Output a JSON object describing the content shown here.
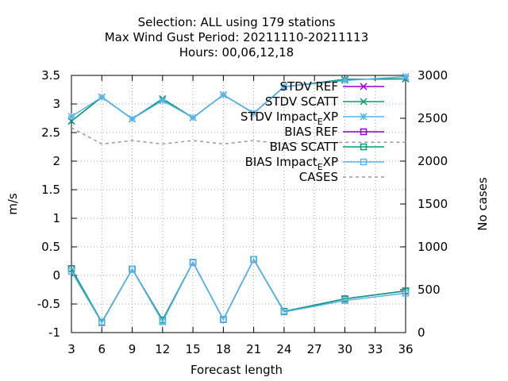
{
  "chart_data": {
    "type": "line",
    "title_lines": [
      "Selection: ALL using   179 stations",
      "Max Wind Gust   Period: 20211110-20211113",
      "Hours:  00,06,12,18"
    ],
    "xlabel": "Forecast length",
    "ylabel": "m/s",
    "y2label": "No cases",
    "x_ticks": [
      3,
      6,
      9,
      12,
      15,
      18,
      21,
      24,
      27,
      30,
      33,
      36
    ],
    "y_ticks": [
      -1,
      -0.5,
      0,
      0.5,
      1,
      1.5,
      2,
      2.5,
      3,
      3.5
    ],
    "y2_ticks": [
      0,
      500,
      1000,
      1500,
      2000,
      2500,
      3000
    ],
    "xlim": [
      3,
      36
    ],
    "ylim": [
      -1,
      3.5
    ],
    "y2lim": [
      0,
      3000
    ],
    "grid": true,
    "legend_position": "top-right",
    "x": [
      3,
      6,
      9,
      12,
      15,
      18,
      21,
      24,
      30,
      36
    ],
    "series": [
      {
        "name": "STDV REF",
        "axis": "y",
        "color": "#9400d3",
        "marker": "x",
        "dash": false,
        "values": [
          2.7,
          3.12,
          2.74,
          3.09,
          2.76,
          3.16,
          2.84,
          3.3,
          3.43,
          3.44
        ]
      },
      {
        "name": "STDV SCATT",
        "axis": "y",
        "color": "#009e73",
        "marker": "x",
        "dash": false,
        "values": [
          2.7,
          3.12,
          2.74,
          3.09,
          2.76,
          3.16,
          2.84,
          3.3,
          3.43,
          3.44
        ]
      },
      {
        "name": "STDV Impact_E XP",
        "axis": "y",
        "color": "#56b4e9",
        "marker": "star",
        "dash": false,
        "values": [
          2.78,
          3.12,
          2.74,
          3.06,
          2.76,
          3.16,
          2.84,
          3.3,
          3.41,
          3.48
        ]
      },
      {
        "name": "BIAS REF",
        "axis": "y",
        "color": "#9400d3",
        "marker": "square",
        "dash": false,
        "values": [
          0.12,
          -0.82,
          0.11,
          -0.78,
          0.23,
          -0.77,
          0.28,
          -0.63,
          -0.41,
          -0.27
        ]
      },
      {
        "name": "BIAS SCATT",
        "axis": "y",
        "color": "#009e73",
        "marker": "square",
        "dash": false,
        "values": [
          0.12,
          -0.82,
          0.11,
          -0.78,
          0.23,
          -0.77,
          0.28,
          -0.63,
          -0.41,
          -0.27
        ]
      },
      {
        "name": "BIAS Impact_E XP",
        "axis": "y",
        "color": "#56b4e9",
        "marker": "square",
        "dash": false,
        "values": [
          0.07,
          -0.83,
          0.11,
          -0.81,
          0.23,
          -0.77,
          0.28,
          -0.64,
          -0.44,
          -0.31
        ]
      },
      {
        "name": "CASES",
        "axis": "y2",
        "color": "#999999",
        "marker": "none",
        "dash": true,
        "values": [
          2390,
          2200,
          2240,
          2200,
          2240,
          2200,
          2240,
          2200,
          2220,
          2220
        ]
      }
    ],
    "legend": [
      {
        "text": "STDV REF"
      },
      {
        "text": "STDV SCATT"
      },
      {
        "text": "STDV Impact",
        "sub": "E",
        "tail": "XP"
      },
      {
        "text": "BIAS REF"
      },
      {
        "text": "BIAS SCATT"
      },
      {
        "text": "BIAS Impact",
        "sub": "E",
        "tail": "XP"
      },
      {
        "text": "CASES"
      }
    ]
  }
}
